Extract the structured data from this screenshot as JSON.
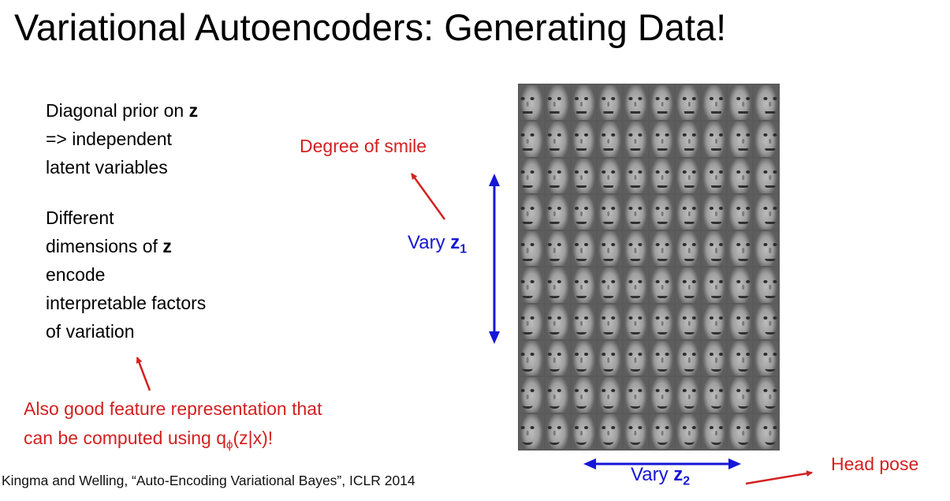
{
  "title": "Variational Autoencoders: Generating Data!",
  "bullets": [
    {
      "lines": [
        {
          "text": "Diagonal prior on ",
          "bold": "z"
        },
        {
          "text": "=> independent",
          "bold": ""
        },
        {
          "text": "latent variables",
          "bold": ""
        }
      ]
    },
    {
      "lines": [
        {
          "text": "Different",
          "bold": ""
        },
        {
          "text": "dimensions of ",
          "bold": "z"
        },
        {
          "text": "encode",
          "bold": ""
        },
        {
          "text": "interpretable factors",
          "bold": ""
        },
        {
          "text": "of variation",
          "bold": ""
        }
      ]
    }
  ],
  "note": {
    "line1": "Also good feature representation that",
    "line2_prefix": "can be computed using q",
    "line2_sub": "ϕ",
    "line2_suffix": "(z|x)!"
  },
  "annotations": {
    "smile": "Degree of smile",
    "vary1_prefix": "Vary ",
    "vary1_var": "z",
    "vary1_sub": "1",
    "vary2_prefix": "Vary ",
    "vary2_var": "z",
    "vary2_sub": "2",
    "head_pose": "Head pose"
  },
  "citation": "Kingma and Welling, “Auto-Encoding Variational Bayes”, ICLR 2014",
  "face_grid": {
    "rows": 10,
    "cols": 10
  },
  "colors": {
    "red": "#d42020",
    "blue": "#1616d8"
  }
}
